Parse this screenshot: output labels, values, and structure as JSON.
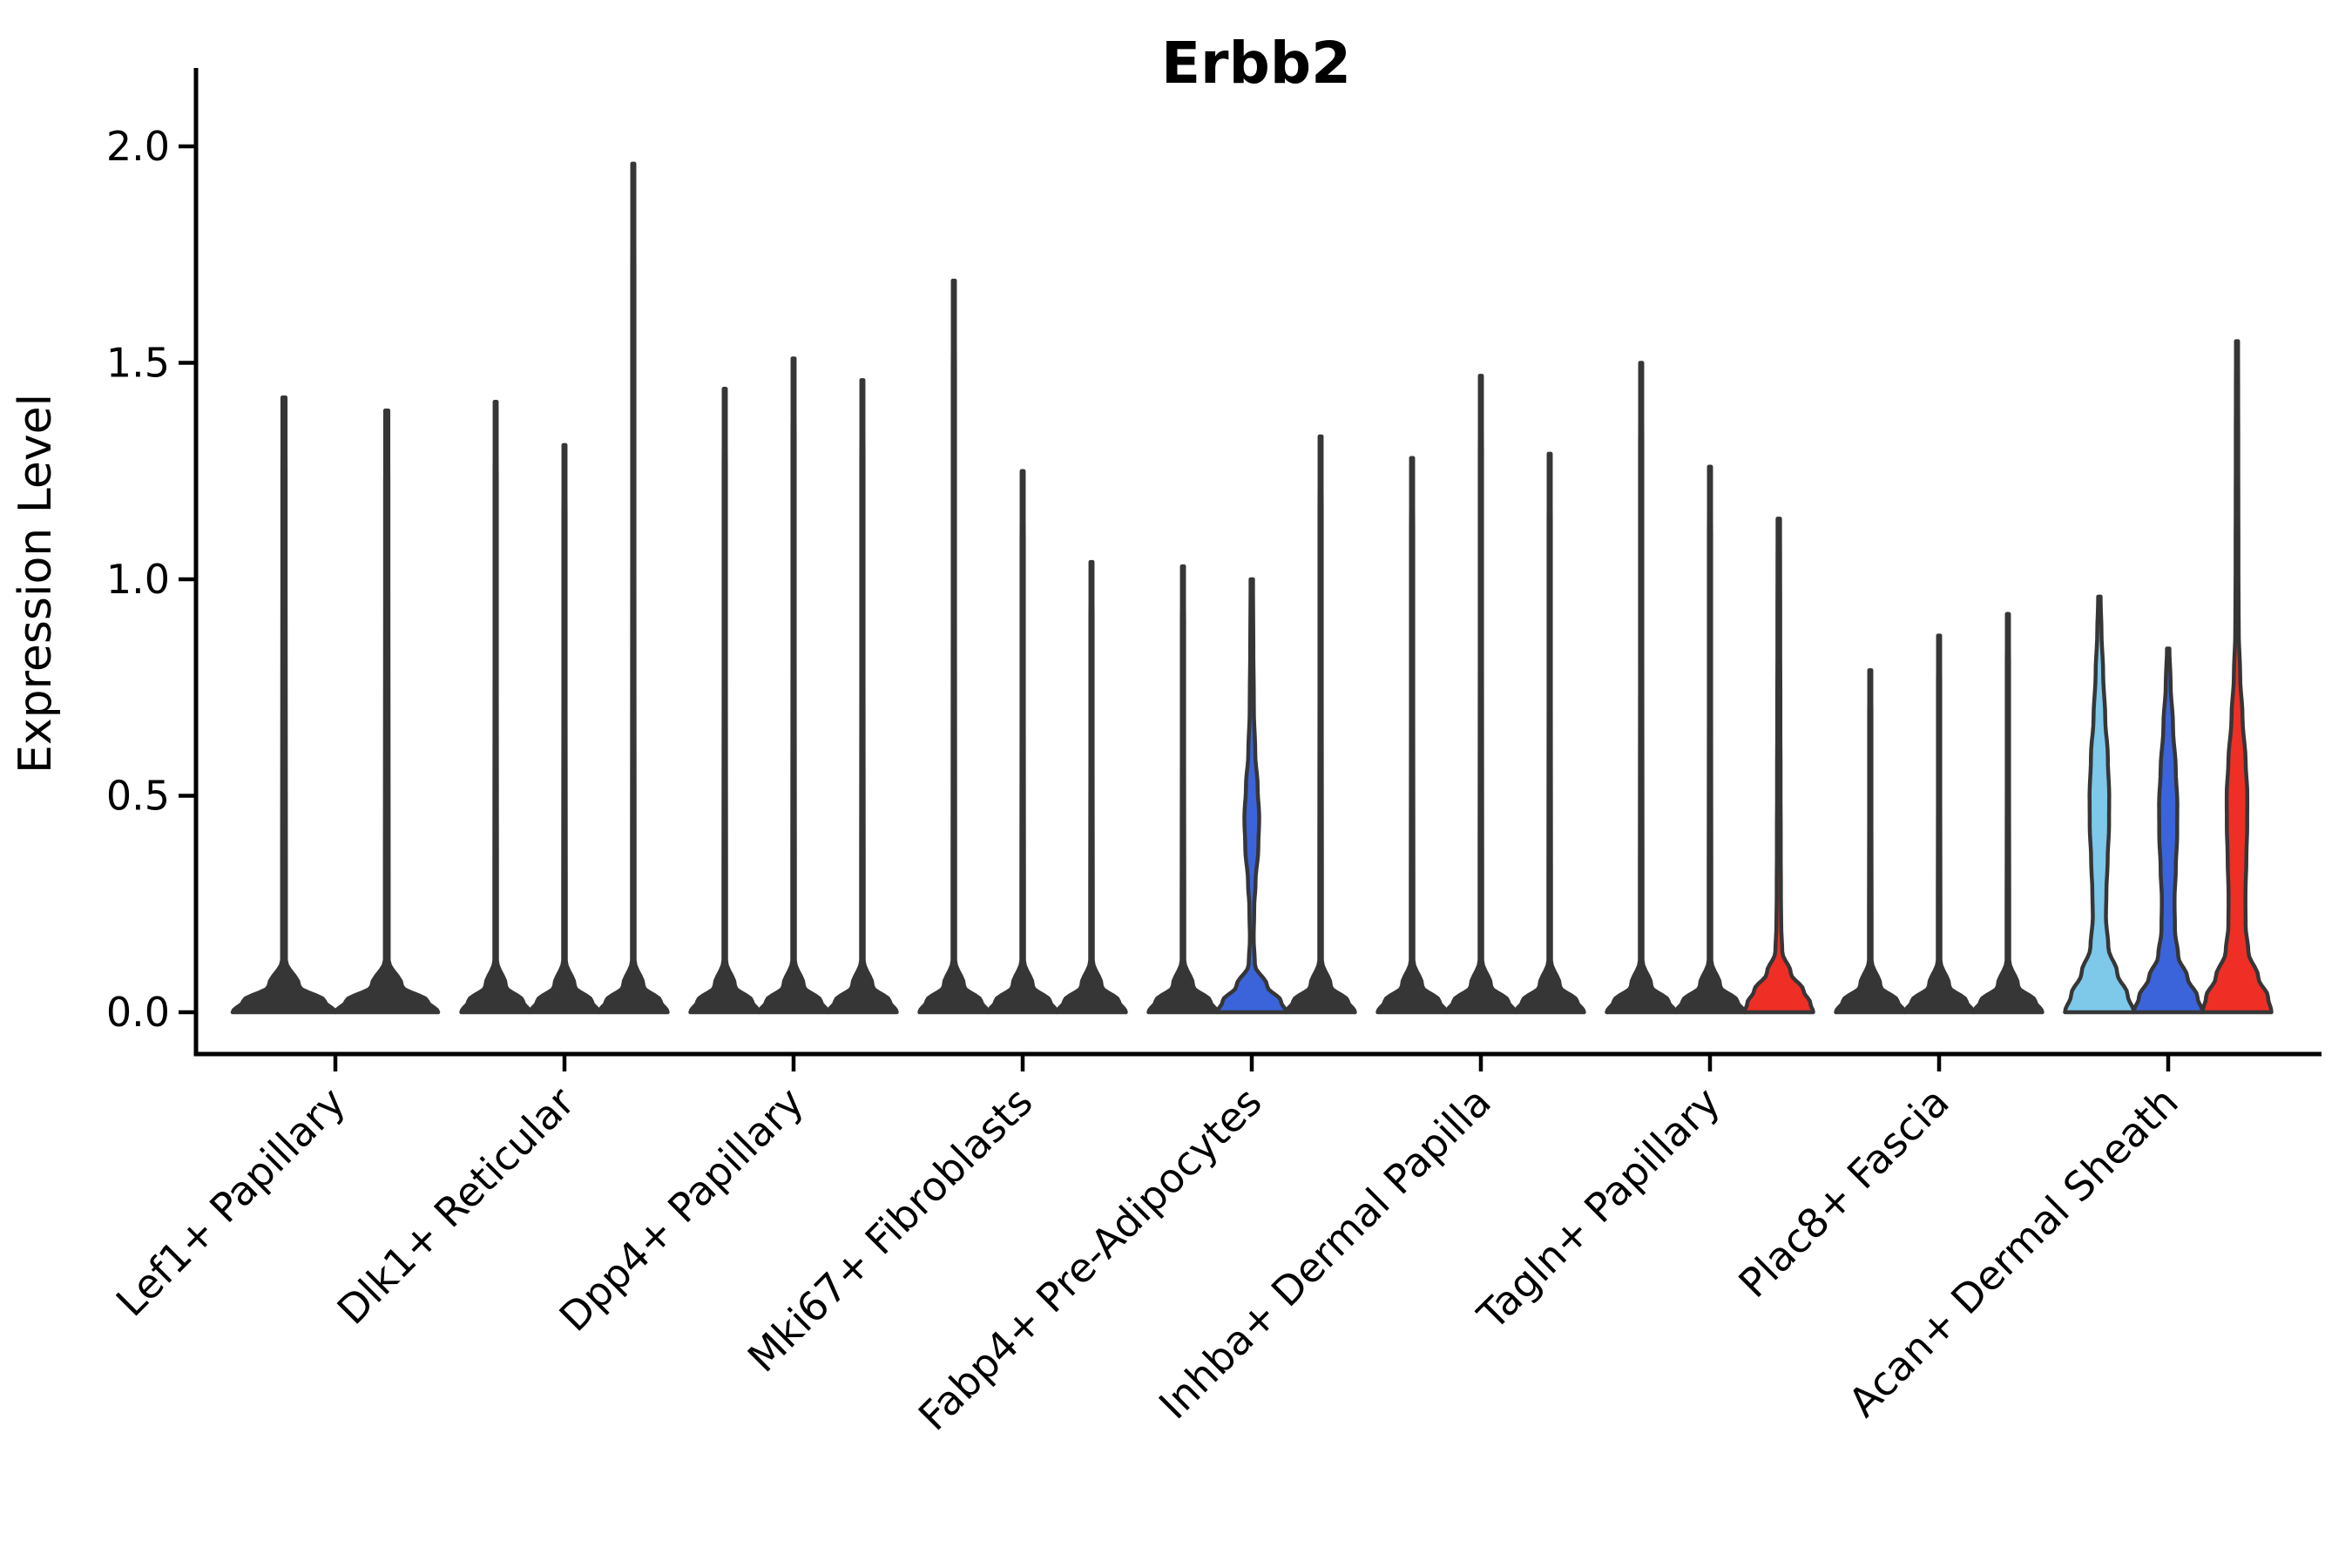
{
  "title": "Erbb2",
  "y_axis": {
    "label": "Expression Level",
    "tick_labels": [
      "0.0",
      "0.5",
      "1.0",
      "1.5",
      "2.0"
    ],
    "tick_values": [
      0.0,
      0.5,
      1.0,
      1.5,
      2.0
    ]
  },
  "colors": {
    "violin_outline": "#363636",
    "axis": "#000000",
    "sample_1_fill": "#7EC8EA",
    "sample_2_fill": "#3B64DB",
    "sample_3_fill": "#EF2F26",
    "collapsed_fill": "#363636",
    "background": "#ffffff"
  },
  "chart_data": {
    "type": "violin",
    "title": "Erbb2",
    "xlabel": "",
    "ylabel": "Expression Level",
    "ylim": [
      0,
      2.05
    ],
    "yticks": [
      0.0,
      0.5,
      1.0,
      1.5,
      2.0
    ],
    "grid": false,
    "legend": "none",
    "categories": [
      "Lef1+ Papillary",
      "Dlk1+ Reticular",
      "Dpp4+ Papillary",
      "Mki67+ Fibroblasts",
      "Fabp4+ Pre-Adipocytes",
      "Inhba+ Dermal Papilla",
      "Tagln+ Papillary",
      "Plac8+ Fascia",
      "Acan+ Dermal Sheath"
    ],
    "note": "Each category holds up to 3 violins (samples shown left-to-right as skyblue, blue, red). Most violins are collapsed: a thin dark spike up to max expression with a wide flat base at 0. 'max' = top of each violin in Expression Level units.",
    "groups": [
      {
        "category": "Lef1+ Papillary",
        "violins": [
          {
            "sample": 1,
            "max": 1.42,
            "shape": "collapsed",
            "fill": "#7EC8EA"
          },
          {
            "sample": 2,
            "max": 1.39,
            "shape": "collapsed",
            "fill": "#3B64DB"
          }
        ]
      },
      {
        "category": "Dlk1+ Reticular",
        "violins": [
          {
            "sample": 1,
            "max": 1.41,
            "shape": "collapsed",
            "fill": "#7EC8EA"
          },
          {
            "sample": 2,
            "max": 1.31,
            "shape": "collapsed",
            "fill": "#3B64DB"
          },
          {
            "sample": 3,
            "max": 1.96,
            "shape": "collapsed",
            "fill": "#EF2F26"
          }
        ]
      },
      {
        "category": "Dpp4+ Papillary",
        "violins": [
          {
            "sample": 1,
            "max": 1.44,
            "shape": "collapsed",
            "fill": "#7EC8EA"
          },
          {
            "sample": 2,
            "max": 1.51,
            "shape": "collapsed",
            "fill": "#3B64DB"
          },
          {
            "sample": 3,
            "max": 1.46,
            "shape": "collapsed",
            "fill": "#EF2F26"
          }
        ]
      },
      {
        "category": "Mki67+ Fibroblasts",
        "violins": [
          {
            "sample": 1,
            "max": 1.69,
            "shape": "collapsed",
            "fill": "#7EC8EA"
          },
          {
            "sample": 2,
            "max": 1.25,
            "shape": "collapsed",
            "fill": "#3B64DB"
          },
          {
            "sample": 3,
            "max": 1.04,
            "shape": "collapsed",
            "fill": "#EF2F26"
          }
        ]
      },
      {
        "category": "Fabp4+ Pre-Adipocytes",
        "violins": [
          {
            "sample": 1,
            "max": 1.03,
            "shape": "collapsed",
            "fill": "#7EC8EA"
          },
          {
            "sample": 2,
            "max": 1.0,
            "shape": "profiled",
            "fill": "#3B64DB",
            "profile": [
              [
                1.0,
                0.035
              ],
              [
                0.85,
                0.045
              ],
              [
                0.7,
                0.06
              ],
              [
                0.6,
                0.1
              ],
              [
                0.52,
                0.17
              ],
              [
                0.45,
                0.215
              ],
              [
                0.38,
                0.19
              ],
              [
                0.3,
                0.11
              ],
              [
                0.24,
                0.07
              ],
              [
                0.17,
                0.055
              ],
              [
                0.11,
                0.09
              ],
              [
                0.06,
                0.45
              ],
              [
                0.025,
                0.85
              ],
              [
                0,
                1.0
              ]
            ]
          },
          {
            "sample": 3,
            "max": 1.33,
            "shape": "collapsed",
            "fill": "#EF2F26"
          }
        ]
      },
      {
        "category": "Inhba+ Dermal Papilla",
        "violins": [
          {
            "sample": 1,
            "max": 1.28,
            "shape": "collapsed",
            "fill": "#7EC8EA"
          },
          {
            "sample": 2,
            "max": 1.47,
            "shape": "collapsed",
            "fill": "#3B64DB"
          },
          {
            "sample": 3,
            "max": 1.29,
            "shape": "collapsed",
            "fill": "#EF2F26"
          }
        ]
      },
      {
        "category": "Tagln+ Papillary",
        "violins": [
          {
            "sample": 1,
            "max": 1.5,
            "shape": "collapsed",
            "fill": "#7EC8EA"
          },
          {
            "sample": 2,
            "max": 1.26,
            "shape": "collapsed",
            "fill": "#3B64DB"
          },
          {
            "sample": 3,
            "max": 1.14,
            "shape": "profiled",
            "fill": "#EF2F26",
            "profile": [
              [
                1.14,
                0.035
              ],
              [
                0.9,
                0.04
              ],
              [
                0.7,
                0.045
              ],
              [
                0.55,
                0.05
              ],
              [
                0.4,
                0.055
              ],
              [
                0.28,
                0.06
              ],
              [
                0.2,
                0.07
              ],
              [
                0.14,
                0.1
              ],
              [
                0.09,
                0.35
              ],
              [
                0.05,
                0.72
              ],
              [
                0.02,
                0.92
              ],
              [
                0,
                1.0
              ]
            ]
          }
        ]
      },
      {
        "category": "Plac8+ Fascia",
        "violins": [
          {
            "sample": 1,
            "max": 0.79,
            "shape": "collapsed",
            "fill": "#7EC8EA"
          },
          {
            "sample": 2,
            "max": 0.87,
            "shape": "collapsed",
            "fill": "#3B64DB"
          },
          {
            "sample": 3,
            "max": 0.92,
            "shape": "collapsed",
            "fill": "#EF2F26"
          }
        ]
      },
      {
        "category": "Acan+ Dermal Sheath",
        "violins": [
          {
            "sample": 1,
            "max": 0.96,
            "shape": "profiled",
            "fill": "#7EC8EA",
            "profile": [
              [
                0.96,
                0.035
              ],
              [
                0.88,
                0.06
              ],
              [
                0.78,
                0.11
              ],
              [
                0.68,
                0.17
              ],
              [
                0.59,
                0.245
              ],
              [
                0.5,
                0.285
              ],
              [
                0.43,
                0.28
              ],
              [
                0.35,
                0.24
              ],
              [
                0.28,
                0.205
              ],
              [
                0.22,
                0.19
              ],
              [
                0.15,
                0.26
              ],
              [
                0.09,
                0.52
              ],
              [
                0.04,
                0.82
              ],
              [
                0,
                1.0
              ]
            ]
          },
          {
            "sample": 2,
            "max": 0.84,
            "shape": "profiled",
            "fill": "#3B64DB",
            "profile": [
              [
                0.84,
                0.035
              ],
              [
                0.76,
                0.07
              ],
              [
                0.66,
                0.14
              ],
              [
                0.56,
                0.22
              ],
              [
                0.48,
                0.265
              ],
              [
                0.41,
                0.26
              ],
              [
                0.33,
                0.22
              ],
              [
                0.26,
                0.185
              ],
              [
                0.19,
                0.195
              ],
              [
                0.13,
                0.29
              ],
              [
                0.08,
                0.56
              ],
              [
                0.035,
                0.85
              ],
              [
                0,
                1.0
              ]
            ]
          },
          {
            "sample": 3,
            "max": 1.55,
            "shape": "profiled",
            "fill": "#EF2F26",
            "profile": [
              [
                1.55,
                0.03
              ],
              [
                1.3,
                0.035
              ],
              [
                1.05,
                0.04
              ],
              [
                0.88,
                0.05
              ],
              [
                0.78,
                0.09
              ],
              [
                0.68,
                0.16
              ],
              [
                0.58,
                0.25
              ],
              [
                0.5,
                0.3
              ],
              [
                0.43,
                0.295
              ],
              [
                0.35,
                0.27
              ],
              [
                0.27,
                0.245
              ],
              [
                0.2,
                0.25
              ],
              [
                0.14,
                0.33
              ],
              [
                0.08,
                0.62
              ],
              [
                0.035,
                0.9
              ],
              [
                0,
                1.0
              ]
            ]
          }
        ]
      }
    ]
  }
}
